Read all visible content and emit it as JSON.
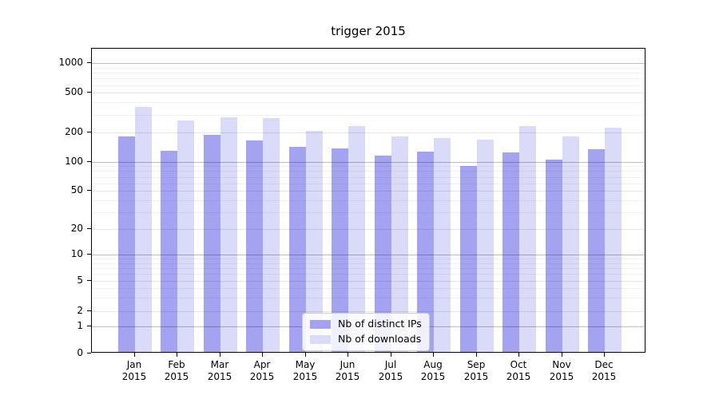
{
  "title": "trigger 2015",
  "chart_data": {
    "type": "bar",
    "title": "trigger 2015",
    "categories": [
      "Jan",
      "Feb",
      "Mar",
      "Apr",
      "May",
      "Jun",
      "Jul",
      "Aug",
      "Sep",
      "Oct",
      "Nov",
      "Dec"
    ],
    "category_year": "2015",
    "series": [
      {
        "name": "Nb of distinct IPs",
        "color": "#a3a3f2",
        "values": [
          175,
          125,
          181,
          160,
          137,
          132,
          111,
          123,
          87,
          119,
          102,
          129
        ]
      },
      {
        "name": "Nb of downloads",
        "color": "#dadaf9",
        "values": [
          345,
          255,
          274,
          267,
          197,
          222,
          174,
          169,
          162,
          221,
          173,
          215
        ]
      }
    ],
    "xlabel": "",
    "ylabel": "",
    "y_ticks": [
      0,
      1,
      2,
      5,
      10,
      20,
      50,
      100,
      200,
      500,
      1000
    ],
    "y_minor_ticks": [
      3,
      4,
      6,
      7,
      8,
      9,
      30,
      40,
      60,
      70,
      80,
      90,
      300,
      400,
      600,
      700,
      800,
      900
    ],
    "ylim": [
      0,
      1600
    ],
    "scale": "symlog",
    "grid": true,
    "legend_position": "lower center"
  },
  "colors": {
    "series1": "#a3a3f2",
    "series2": "#dadaf9",
    "axis": "#000000",
    "background": "#ffffff"
  }
}
